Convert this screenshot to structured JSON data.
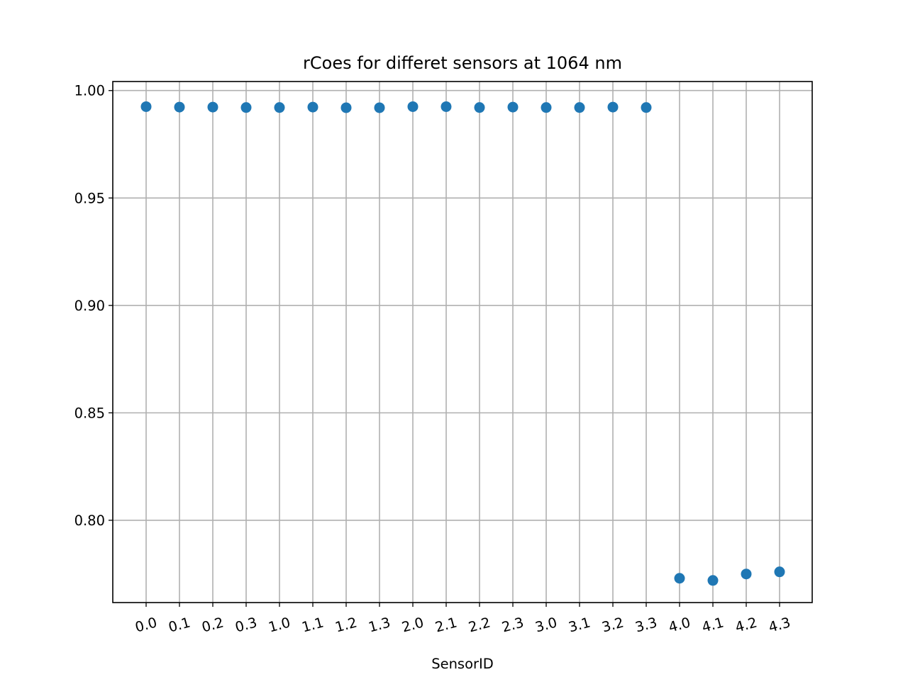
{
  "chart_data": {
    "type": "scatter",
    "title": "rCoes for differet sensors at 1064 nm",
    "xlabel": "SensorID",
    "ylabel": "",
    "categories": [
      "0.0",
      "0.1",
      "0.2",
      "0.3",
      "1.0",
      "1.1",
      "1.2",
      "1.3",
      "2.0",
      "2.1",
      "2.2",
      "2.3",
      "3.0",
      "3.1",
      "3.2",
      "3.3",
      "4.0",
      "4.1",
      "4.2",
      "4.3"
    ],
    "values": [
      0.9925,
      0.9923,
      0.9923,
      0.9921,
      0.9921,
      0.9923,
      0.992,
      0.992,
      0.9925,
      0.9925,
      0.9921,
      0.9923,
      0.9921,
      0.9921,
      0.9923,
      0.9921,
      0.773,
      0.772,
      0.775,
      0.776
    ],
    "ylim": [
      0.7617,
      1.0042
    ],
    "yticks": [
      0.8,
      0.85,
      0.9,
      0.95,
      1.0
    ],
    "ytick_labels": [
      "0.80",
      "0.85",
      "0.90",
      "0.95",
      "1.00"
    ],
    "grid": true,
    "marker_color": "#1f77b4"
  }
}
